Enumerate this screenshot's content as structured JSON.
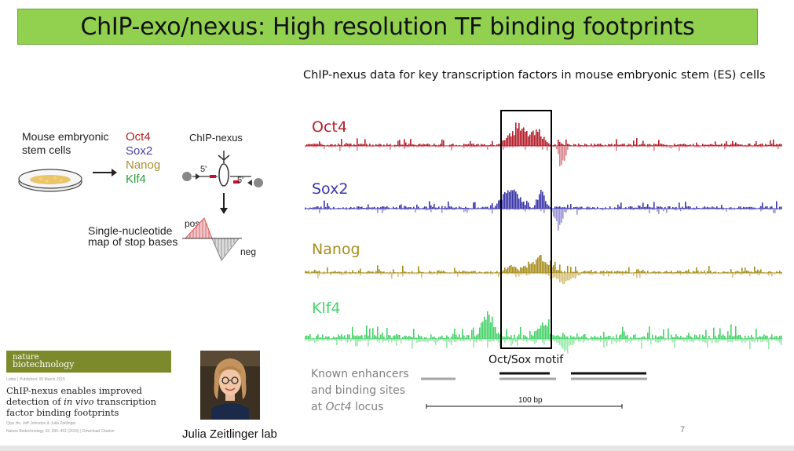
{
  "slide": {
    "title": "ChIP-exo/nexus: High resolution TF binding footprints",
    "subtitle": "ChIP-nexus data for key transcription factors in mouse embryonic stem (ES) cells",
    "page_number": "7"
  },
  "schematic": {
    "cells_label_1": "Mouse embryonic",
    "cells_label_2": "stem cells",
    "factors": [
      {
        "name": "Oct4",
        "color": "#b22222"
      },
      {
        "name": "Sox2",
        "color": "#4b3fa6"
      },
      {
        "name": "Nanog",
        "color": "#a89033"
      },
      {
        "name": "Klf4",
        "color": "#2e9e3a"
      }
    ],
    "method_label": "ChIP-nexus",
    "five_prime_1": "5'",
    "five_prime_2": "5'",
    "map_label_1": "Single-nucleotide",
    "map_label_2": "map of stop bases",
    "pos_label": "pos",
    "neg_label": "neg"
  },
  "paper": {
    "journal_line1": "nature",
    "journal_line2": "biotechnology",
    "meta": "Letter | Published: 09 March 2015",
    "title_parts": [
      "ChIP-nexus enables improved detection of ",
      "in vivo",
      " transcription factor binding footprints"
    ],
    "authors": "Qiye He, Jeff Johnston & Julia Zeitlinger",
    "citation": "Nature Biotechnology 33, 395–401 (2015) | Download Citation"
  },
  "lab_caption": "Julia Zeitlinger lab",
  "tracks": [
    {
      "name": "Oct4",
      "pos_color": "#b51f2b",
      "neg_color": "#d9828a",
      "peaks": [
        [
          660,
          26,
          30,
          1
        ],
        [
          685,
          14,
          22,
          1
        ],
        [
          715,
          8,
          35,
          -1
        ]
      ]
    },
    {
      "name": "Sox2",
      "pos_color": "#3a35a8",
      "neg_color": "#9a94d8",
      "peaks": [
        [
          650,
          22,
          30,
          1
        ],
        [
          688,
          10,
          28,
          1
        ],
        [
          710,
          10,
          30,
          -1
        ]
      ]
    },
    {
      "name": "Nanog",
      "pos_color": "#a88e1e",
      "neg_color": "#d4c07a",
      "peaks": [
        [
          650,
          12,
          14,
          1
        ],
        [
          686,
          28,
          24,
          1
        ],
        [
          716,
          24,
          14,
          -1
        ]
      ]
    },
    {
      "name": "Klf4",
      "pos_color": "#46d36a",
      "neg_color": "#9ce8ac",
      "peaks": [
        [
          620,
          18,
          30,
          1
        ],
        [
          690,
          14,
          22,
          1
        ],
        [
          720,
          12,
          20,
          -1
        ]
      ]
    }
  ],
  "motif_label": "Oct/Sox motif",
  "legend": {
    "line1": "Known enhancers",
    "line2": "and binding sites",
    "line3_prefix": "at ",
    "line3_gene": "Oct4",
    "line3_suffix": " locus"
  },
  "scale_label": "100 bp"
}
